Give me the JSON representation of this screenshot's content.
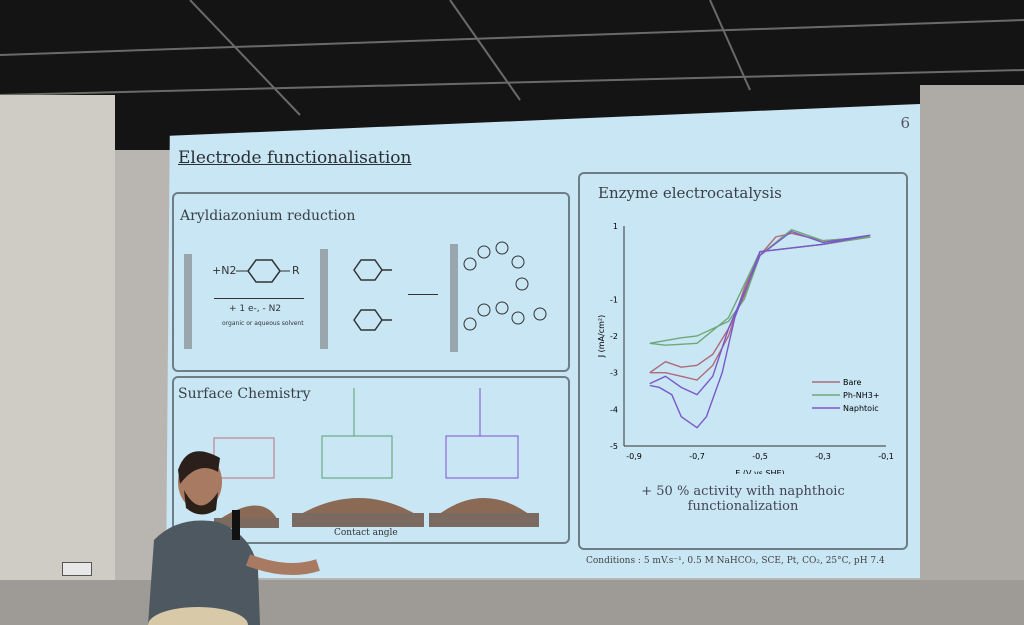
{
  "slide": {
    "page_number": "6",
    "title": "Electrode functionalisation",
    "aryl": {
      "heading": "Aryldiazonium reduction",
      "reactant": "+N2",
      "substituent": "R",
      "conditions": "+ 1 e-, - N2",
      "solvent": "organic or aqueous solvent"
    },
    "surface": {
      "heading": "Surface Chemistry",
      "caption": "Contact angle"
    },
    "enzyme": {
      "heading": "Enzyme electrocatalysis",
      "note_line1": "+ 50 % activity with naphthoic",
      "note_line2": "functionalization"
    },
    "conditions": "Conditions : 5 mV.s⁻¹, 0.5 M NaHCO₃, SCE, Pt, CO₂, 25°C, pH 7.4"
  },
  "chart_data": {
    "type": "line",
    "xlabel": "E (V vs SHE)",
    "ylabel": "J (mA/cm²)",
    "xlim": [
      -0.9,
      -0.1
    ],
    "ylim": [
      -5,
      1
    ],
    "xticks": [
      "-0,9",
      "-0,7",
      "-0,5",
      "-0,3",
      "-0,1"
    ],
    "yticks": [
      "1",
      "-1",
      "-2",
      "-3",
      "-4",
      "-5"
    ],
    "legend_position": "bottom-right",
    "series": [
      {
        "name": "Bare",
        "color": "#b06a78",
        "points": [
          [
            -0.85,
            -3.0
          ],
          [
            -0.8,
            -2.7
          ],
          [
            -0.75,
            -2.85
          ],
          [
            -0.7,
            -2.8
          ],
          [
            -0.65,
            -2.5
          ],
          [
            -0.6,
            -1.8
          ],
          [
            -0.55,
            -0.9
          ],
          [
            -0.5,
            0.2
          ],
          [
            -0.45,
            0.7
          ],
          [
            -0.4,
            0.8
          ],
          [
            -0.3,
            0.6
          ],
          [
            -0.15,
            0.7
          ],
          [
            -0.3,
            0.5
          ],
          [
            -0.5,
            0.3
          ],
          [
            -0.55,
            -0.7
          ],
          [
            -0.6,
            -2.0
          ],
          [
            -0.65,
            -2.8
          ],
          [
            -0.7,
            -3.2
          ],
          [
            -0.75,
            -3.1
          ],
          [
            -0.8,
            -3.0
          ],
          [
            -0.85,
            -3.0
          ]
        ]
      },
      {
        "name": "Ph-NH3+",
        "color": "#6fa878",
        "points": [
          [
            -0.85,
            -2.2
          ],
          [
            -0.75,
            -2.05
          ],
          [
            -0.7,
            -2.0
          ],
          [
            -0.6,
            -1.6
          ],
          [
            -0.55,
            -1.0
          ],
          [
            -0.5,
            0.2
          ],
          [
            -0.4,
            0.9
          ],
          [
            -0.3,
            0.6
          ],
          [
            -0.15,
            0.7
          ],
          [
            -0.3,
            0.5
          ],
          [
            -0.5,
            0.3
          ],
          [
            -0.55,
            -0.6
          ],
          [
            -0.6,
            -1.5
          ],
          [
            -0.7,
            -2.2
          ],
          [
            -0.8,
            -2.25
          ],
          [
            -0.85,
            -2.2
          ]
        ]
      },
      {
        "name": "Naphtoic",
        "color": "#7a58c8",
        "points": [
          [
            -0.85,
            -3.3
          ],
          [
            -0.8,
            -3.1
          ],
          [
            -0.75,
            -3.4
          ],
          [
            -0.7,
            -3.6
          ],
          [
            -0.65,
            -3.1
          ],
          [
            -0.6,
            -1.8
          ],
          [
            -0.55,
            -0.8
          ],
          [
            -0.5,
            0.2
          ],
          [
            -0.4,
            0.85
          ],
          [
            -0.3,
            0.55
          ],
          [
            -0.15,
            0.75
          ],
          [
            -0.3,
            0.5
          ],
          [
            -0.5,
            0.3
          ],
          [
            -0.58,
            -1.5
          ],
          [
            -0.62,
            -3.0
          ],
          [
            -0.67,
            -4.2
          ],
          [
            -0.7,
            -4.5
          ],
          [
            -0.75,
            -4.2
          ],
          [
            -0.78,
            -3.6
          ],
          [
            -0.82,
            -3.4
          ],
          [
            -0.85,
            -3.35
          ]
        ]
      }
    ]
  }
}
